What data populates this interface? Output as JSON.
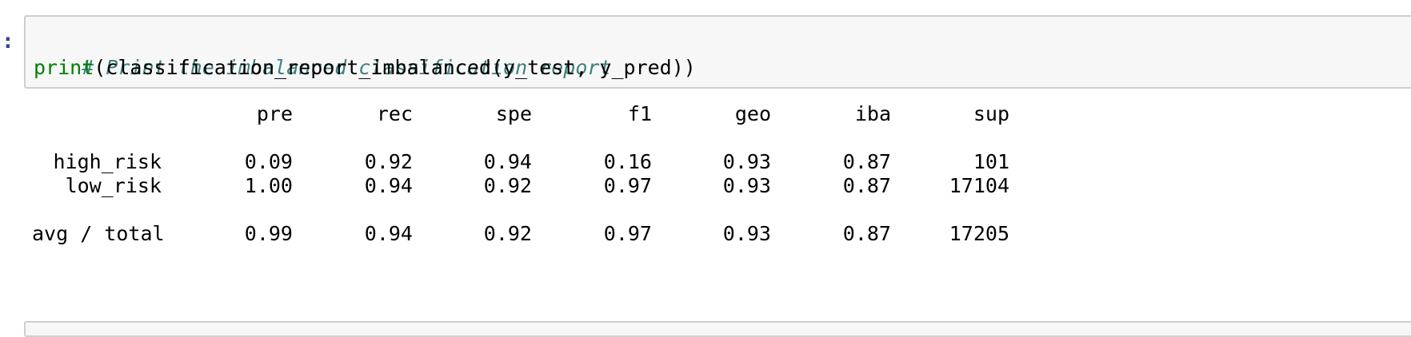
{
  "cell": {
    "prompt": ":",
    "comment": "# Print the imbalanced classification report",
    "code_builtin": "print",
    "code_rest": "(classification_report_imbalanced(y_test, y_pred))"
  },
  "report": {
    "headers": [
      "pre",
      "rec",
      "spe",
      "f1",
      "geo",
      "iba",
      "sup"
    ],
    "rows": [
      {
        "label": "high_risk",
        "values": [
          "0.09",
          "0.92",
          "0.94",
          "0.16",
          "0.93",
          "0.87",
          "101"
        ]
      },
      {
        "label": "low_risk",
        "values": [
          "1.00",
          "0.94",
          "0.92",
          "0.97",
          "0.93",
          "0.87",
          "17104"
        ]
      }
    ],
    "total": {
      "label": "avg / total",
      "values": [
        "0.99",
        "0.94",
        "0.92",
        "0.97",
        "0.93",
        "0.87",
        "17205"
      ]
    }
  }
}
